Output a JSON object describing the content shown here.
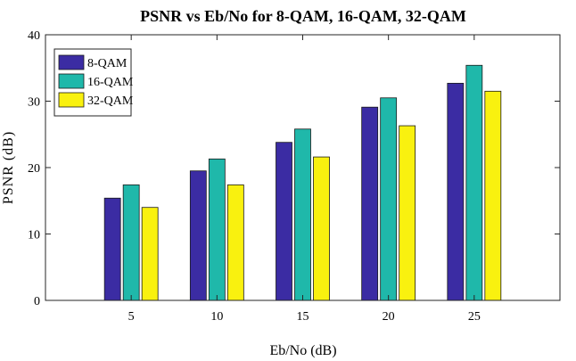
{
  "chart_data": {
    "type": "bar",
    "title": "PSNR vs Eb/No for 8-QAM, 16-QAM, 32-QAM",
    "xlabel": "Eb/No (dB)",
    "ylabel": "PSNR (dB)",
    "categories": [
      "5",
      "10",
      "15",
      "20",
      "25"
    ],
    "series": [
      {
        "name": "8-QAM",
        "values": [
          15.4,
          19.5,
          23.8,
          29.1,
          32.7
        ],
        "color": "#3B2CA3"
      },
      {
        "name": "16-QAM",
        "values": [
          17.4,
          21.3,
          25.8,
          30.5,
          35.4
        ],
        "color": "#1FB8AA"
      },
      {
        "name": "32-QAM",
        "values": [
          14.0,
          17.4,
          21.6,
          26.3,
          31.5
        ],
        "color": "#F9F10F"
      }
    ],
    "ylim": [
      0,
      40
    ],
    "yticks": [
      0,
      10,
      20,
      30,
      40
    ],
    "grid": false,
    "legend_position": "top-left"
  }
}
